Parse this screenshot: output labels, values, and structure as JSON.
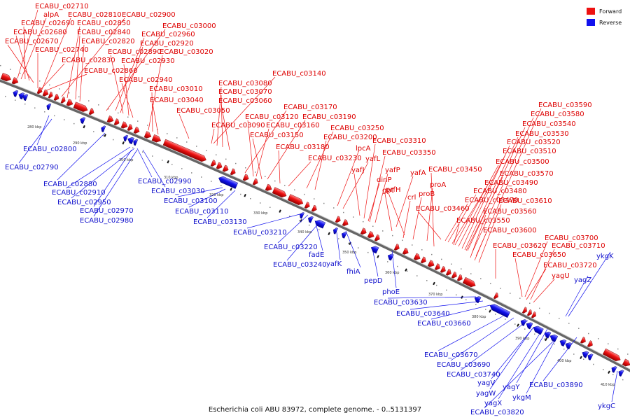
{
  "caption": "Escherichia coli ABU 83972, complete genome. - 0..5131397",
  "legend": [
    {
      "label": "Forward",
      "color": "#ee1111"
    },
    {
      "label": "Reverse",
      "color": "#1111ee"
    }
  ],
  "colors": {
    "forward": "#ee1111",
    "reverse": "#1111ee",
    "backbone": "#666666"
  },
  "kbp_labels": [
    "280 kbp",
    "290 kbp",
    "300 kbp",
    "310 kbp",
    "320 kbp",
    "330 kbp",
    "340 kbp",
    "350 kbp",
    "360 kbp",
    "370 kbp",
    "380 kbp",
    "390 kbp",
    "400 kbp",
    "410 kbp"
  ],
  "forward_labels": [
    "ECABU_c02710",
    "alpA",
    "ECABU_c02810",
    "ECABU_c02900",
    "ECABU_c02690",
    "ECABU_c02850",
    "ECABU_c03000",
    "ECABU_c02680",
    "ECABU_c02840",
    "ECABU_c02960",
    "ECABU_c02670",
    "ECABU_c02820",
    "ECABU_c02920",
    "ECABU_c02740",
    "ECABU_c02890",
    "ECABU_c03020",
    "ECABU_c02830",
    "ECABU_c02930",
    "ECABU_c02860",
    "ECABU_c03140",
    "ECABU_c02940",
    "ECABU_c03080",
    "ECABU_c03010",
    "ECABU_c03070",
    "ECABU_c03040",
    "ECABU_c03060",
    "ECABU_c03050",
    "ECABU_c03170",
    "ECABU_c03120",
    "ECABU_c03190",
    "ECABU_c03090",
    "ECABU_c03160",
    "ECABU_c03250",
    "ECABU_c03150",
    "ECABU_c03200",
    "ECABU_c03310",
    "ECABU_c03180",
    "lpcA",
    "ECABU_c03350",
    "ECABU_c03230",
    "yafL",
    "yafJ",
    "yafP",
    "yafA",
    "dinP",
    "ECABU_c03450",
    "gpt",
    "proA",
    "prfH",
    "crl",
    "proB",
    "ECABU_c03590",
    "ECABU_c03580",
    "ECABU_c03540",
    "ECABU_c03530",
    "ECABU_c03520",
    "ECABU_c03510",
    "ECABU_c03500",
    "ECABU_c03570",
    "ECABU_c03490",
    "ECABU_c03480",
    "ECABU_c03470",
    "ECABU_c03610",
    "ECABU_c03460",
    "ECABU_c03560",
    "ECABU_c03550",
    "ECABU_c03600",
    "ECABU_c03620",
    "ECABU_c03700",
    "ECABU_c03710",
    "ECABU_c03650",
    "ECABU_c03720",
    "yagU"
  ],
  "reverse_labels": [
    "ECABU_c02800",
    "ECABU_c02790",
    "ECABU_c02880",
    "ECABU_c02990",
    "ECABU_c02910",
    "ECABU_c03030",
    "ECABU_c02950",
    "ECABU_c03100",
    "ECABU_c02970",
    "ECABU_c03110",
    "ECABU_c02980",
    "ECABU_c03130",
    "ECABU_c03210",
    "ECABU_c03220",
    "fadE",
    "ECABU_c03240",
    "yafK",
    "fhiA",
    "pepD",
    "phoE",
    "ECABU_c03630",
    "ECABU_c03640",
    "ECABU_c03660",
    "ykgK",
    "yagZ",
    "ECABU_c03670",
    "ECABU_c03690",
    "ECABU_c03740",
    "yagV",
    "yagY",
    "ECABU_c03890",
    "yagW",
    "yagX",
    "ykgM",
    "ECABU_c03820",
    "ykgC"
  ]
}
